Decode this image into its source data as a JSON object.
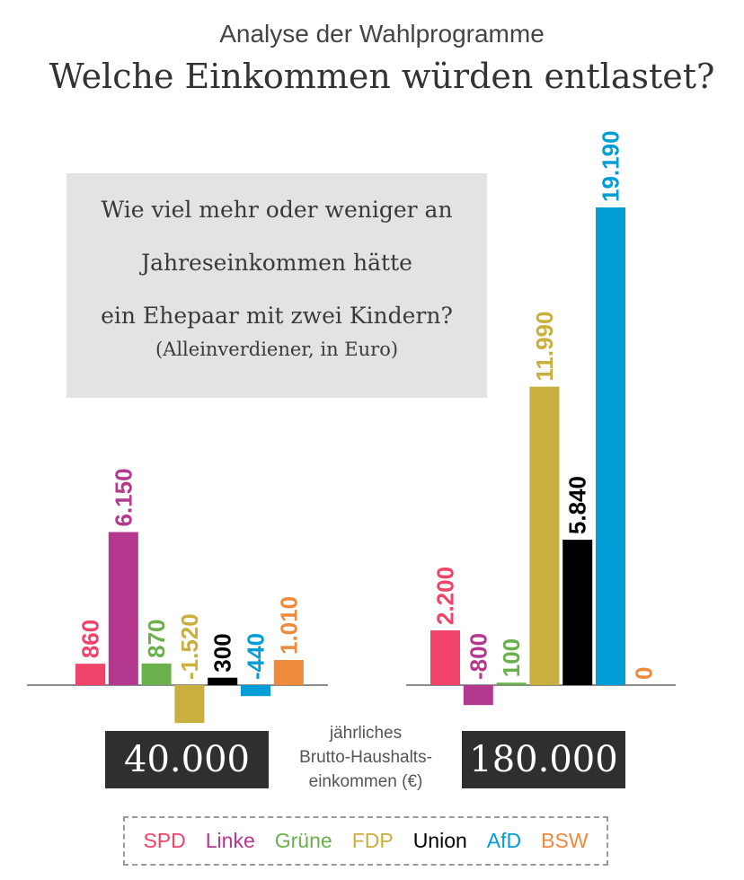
{
  "header": {
    "subtitle": "Analyse der Wahlprogramme",
    "title": "Welche Einkommen würden entlastet?"
  },
  "question": {
    "lines": [
      "Wie viel mehr oder weniger an",
      "Jahreseinkommen hätte",
      "ein Ehepaar mit zwei Kindern?"
    ],
    "note": "(Alleinverdiener, in Euro)"
  },
  "axis_note": {
    "lines": [
      "jährliches",
      "Brutto-Haushalts-",
      "einkommen (€)"
    ]
  },
  "legend": [
    {
      "label": "SPD",
      "color": "#f0436a"
    },
    {
      "label": "Linke",
      "color": "#b5388f"
    },
    {
      "label": "Grüne",
      "color": "#6ab04c"
    },
    {
      "label": "FDP",
      "color": "#c9b03e"
    },
    {
      "label": "Union",
      "color": "#000000"
    },
    {
      "label": "AfD",
      "color": "#009ed6"
    },
    {
      "label": "BSW",
      "color": "#ee8a3c"
    }
  ],
  "chart_data": {
    "type": "bar",
    "ylim": [
      -2000,
      20000
    ],
    "categories": [
      "SPD",
      "Linke",
      "Grüne",
      "FDP",
      "Union",
      "AfD",
      "BSW"
    ],
    "colors": [
      "#f0436a",
      "#b5388f",
      "#6ab04c",
      "#c9b03e",
      "#000000",
      "#009ed6",
      "#ee8a3c"
    ],
    "groups": [
      {
        "income": "40.000",
        "values": [
          860,
          6150,
          870,
          -1520,
          300,
          -440,
          1010
        ],
        "labels": [
          "860",
          "6.150",
          "870",
          "-1.520",
          "300",
          "-440",
          "1.010"
        ]
      },
      {
        "income": "180.000",
        "values": [
          2200,
          -800,
          100,
          11990,
          5840,
          19190,
          0
        ],
        "labels": [
          "2.200",
          "-800",
          "100",
          "11.990",
          "5.840",
          "19.190",
          "0"
        ]
      }
    ]
  }
}
